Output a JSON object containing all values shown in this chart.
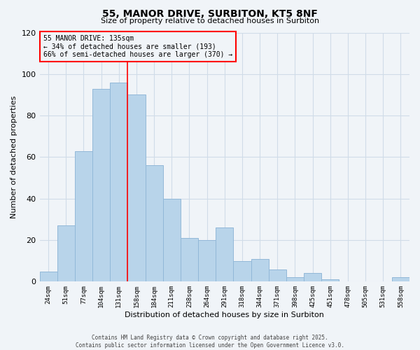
{
  "title": "55, MANOR DRIVE, SURBITON, KT5 8NF",
  "subtitle": "Size of property relative to detached houses in Surbiton",
  "xlabel": "Distribution of detached houses by size in Surbiton",
  "ylabel": "Number of detached properties",
  "bar_labels": [
    "24sqm",
    "51sqm",
    "77sqm",
    "104sqm",
    "131sqm",
    "158sqm",
    "184sqm",
    "211sqm",
    "238sqm",
    "264sqm",
    "291sqm",
    "318sqm",
    "344sqm",
    "371sqm",
    "398sqm",
    "425sqm",
    "451sqm",
    "478sqm",
    "505sqm",
    "531sqm",
    "558sqm"
  ],
  "bar_values": [
    5,
    27,
    63,
    93,
    96,
    90,
    56,
    40,
    21,
    20,
    26,
    10,
    11,
    6,
    2,
    4,
    1,
    0,
    0,
    0,
    2
  ],
  "bar_color": "#b8d4ea",
  "bar_edge_color": "#92b8d8",
  "vline_x": 4.5,
  "vline_color": "red",
  "annotation_title": "55 MANOR DRIVE: 135sqm",
  "annotation_line1": "← 34% of detached houses are smaller (193)",
  "annotation_line2": "66% of semi-detached houses are larger (370) →",
  "ylim": [
    0,
    120
  ],
  "yticks": [
    0,
    20,
    40,
    60,
    80,
    100,
    120
  ],
  "background_color": "#f0f4f8",
  "grid_color": "#d0dce8",
  "footer_line1": "Contains HM Land Registry data © Crown copyright and database right 2025.",
  "footer_line2": "Contains public sector information licensed under the Open Government Licence v3.0."
}
